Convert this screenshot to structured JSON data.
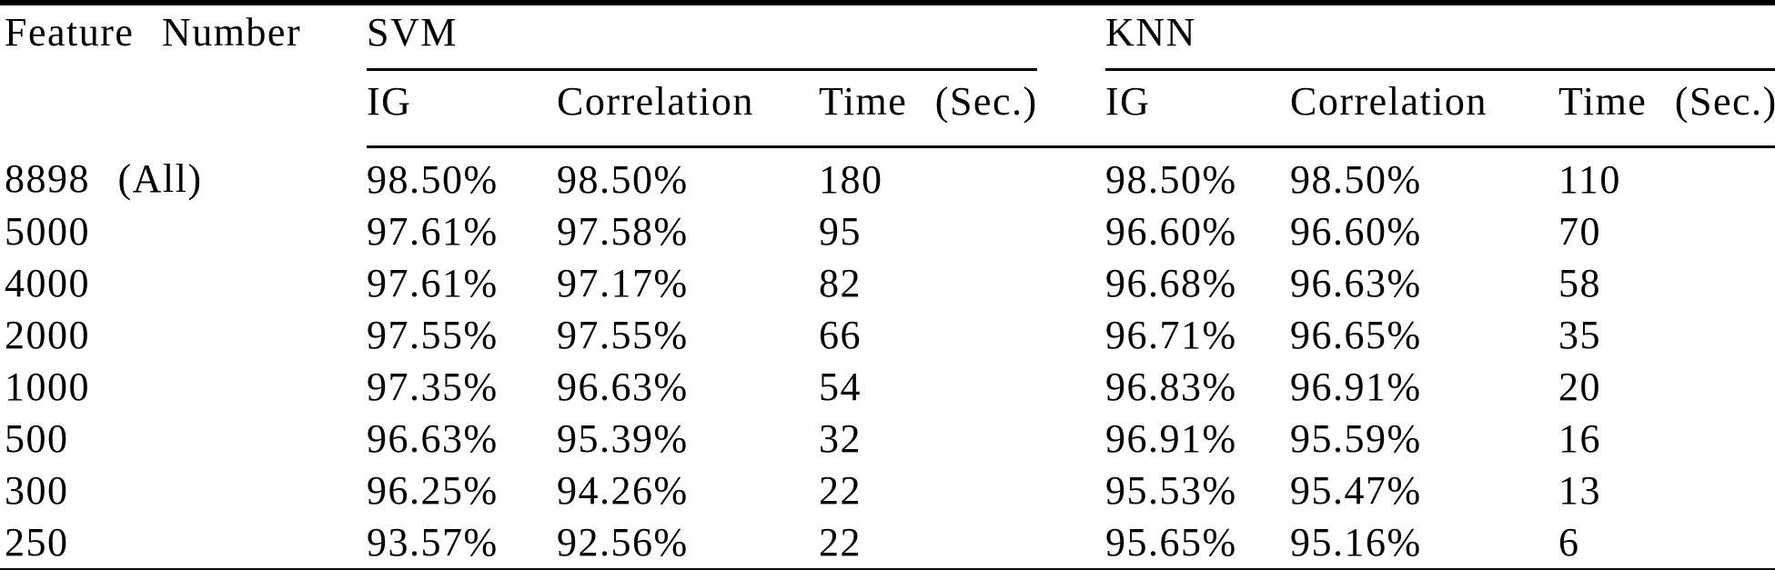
{
  "table": {
    "header": {
      "feature_number_label": "Feature Number",
      "groups": [
        {
          "label": "SVM"
        },
        {
          "label": "KNN"
        }
      ],
      "sub_columns": [
        "IG",
        "Correlation",
        "Time (Sec.)"
      ]
    },
    "rows": [
      {
        "feature_number": "8898 (All)",
        "svm": {
          "ig": "98.50%",
          "correlation": "98.50%",
          "time_sec": "180"
        },
        "knn": {
          "ig": "98.50%",
          "correlation": "98.50%",
          "time_sec": "110"
        }
      },
      {
        "feature_number": "5000",
        "svm": {
          "ig": "97.61%",
          "correlation": "97.58%",
          "time_sec": "95"
        },
        "knn": {
          "ig": "96.60%",
          "correlation": "96.60%",
          "time_sec": "70"
        }
      },
      {
        "feature_number": "4000",
        "svm": {
          "ig": "97.61%",
          "correlation": "97.17%",
          "time_sec": "82"
        },
        "knn": {
          "ig": "96.68%",
          "correlation": "96.63%",
          "time_sec": "58"
        }
      },
      {
        "feature_number": "2000",
        "svm": {
          "ig": "97.55%",
          "correlation": "97.55%",
          "time_sec": "66"
        },
        "knn": {
          "ig": "96.71%",
          "correlation": "96.65%",
          "time_sec": "35"
        }
      },
      {
        "feature_number": "1000",
        "svm": {
          "ig": "97.35%",
          "correlation": "96.63%",
          "time_sec": "54"
        },
        "knn": {
          "ig": "96.83%",
          "correlation": "96.91%",
          "time_sec": "20"
        }
      },
      {
        "feature_number": "500",
        "svm": {
          "ig": "96.63%",
          "correlation": "95.39%",
          "time_sec": "32"
        },
        "knn": {
          "ig": "96.91%",
          "correlation": "95.59%",
          "time_sec": "16"
        }
      },
      {
        "feature_number": "300",
        "svm": {
          "ig": "96.25%",
          "correlation": "94.26%",
          "time_sec": "22"
        },
        "knn": {
          "ig": "95.53%",
          "correlation": "95.47%",
          "time_sec": "13"
        }
      },
      {
        "feature_number": "250",
        "svm": {
          "ig": "93.57%",
          "correlation": "92.56%",
          "time_sec": "22"
        },
        "knn": {
          "ig": "95.65%",
          "correlation": "95.16%",
          "time_sec": "6"
        }
      }
    ]
  },
  "colors": {
    "text": "#000000",
    "background": "#ffffff",
    "rule": "#000000"
  }
}
